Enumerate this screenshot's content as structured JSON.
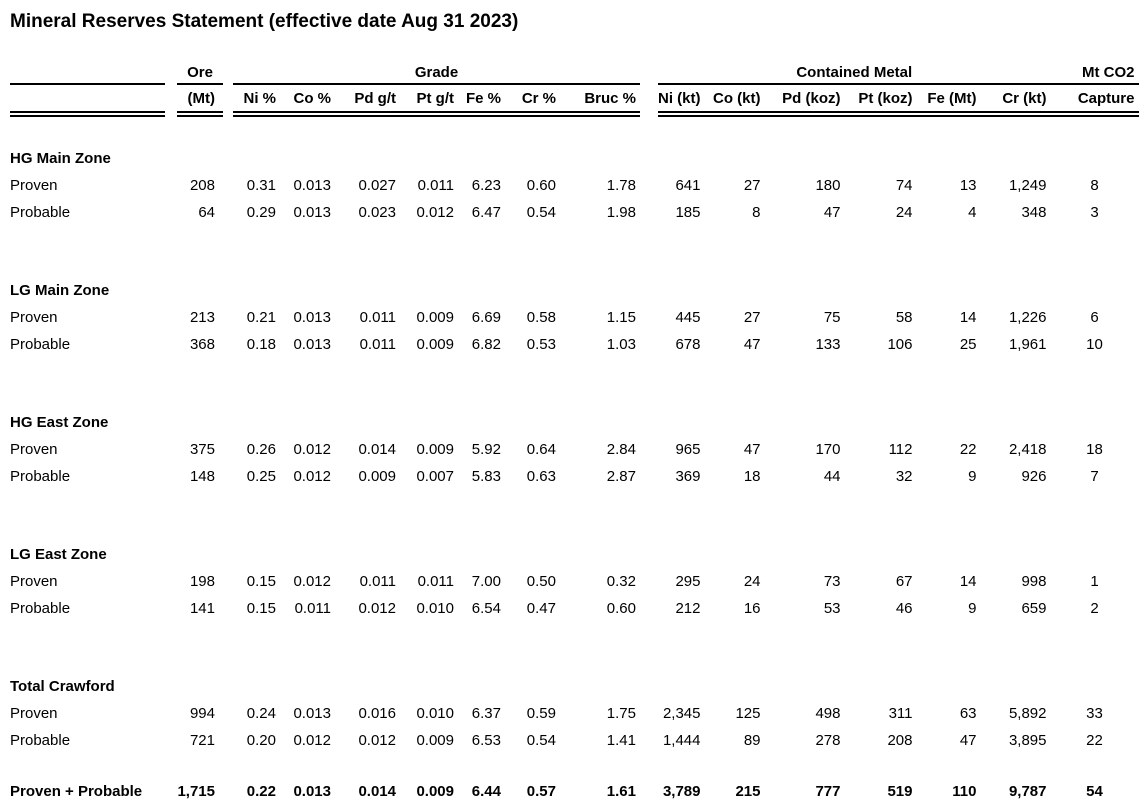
{
  "title": "Mineral Reserves Statement (effective date Aug 31 2023)",
  "table": {
    "group_headers": {
      "ore": "Ore",
      "grade": "Grade",
      "contained_metal": "Contained Metal",
      "mt_co2": "Mt CO2"
    },
    "columns": [
      "(Mt)",
      "Ni %",
      "Co %",
      "Pd g/t",
      "Pt g/t",
      "Fe %",
      "Cr %",
      "Bruc %",
      "Ni (kt)",
      "Co (kt)",
      "Pd (koz)",
      "Pt (koz)",
      "Fe (Mt)",
      "Cr (kt)",
      "Capture"
    ],
    "sections": [
      {
        "zone": "HG Main Zone",
        "rows": [
          {
            "label": "Proven",
            "cells": [
              "208",
              "0.31",
              "0.013",
              "0.027",
              "0.011",
              "6.23",
              "0.60",
              "1.78",
              "641",
              "27",
              "180",
              "74",
              "13",
              "1,249",
              "8"
            ]
          },
          {
            "label": "Probable",
            "cells": [
              "64",
              "0.29",
              "0.013",
              "0.023",
              "0.012",
              "6.47",
              "0.54",
              "1.98",
              "185",
              "8",
              "47",
              "24",
              "4",
              "348",
              "3"
            ]
          }
        ]
      },
      {
        "zone": "LG Main Zone",
        "rows": [
          {
            "label": "Proven",
            "cells": [
              "213",
              "0.21",
              "0.013",
              "0.011",
              "0.009",
              "6.69",
              "0.58",
              "1.15",
              "445",
              "27",
              "75",
              "58",
              "14",
              "1,226",
              "6"
            ]
          },
          {
            "label": "Probable",
            "cells": [
              "368",
              "0.18",
              "0.013",
              "0.011",
              "0.009",
              "6.82",
              "0.53",
              "1.03",
              "678",
              "47",
              "133",
              "106",
              "25",
              "1,961",
              "10"
            ]
          }
        ]
      },
      {
        "zone": "HG East Zone",
        "rows": [
          {
            "label": "Proven",
            "cells": [
              "375",
              "0.26",
              "0.012",
              "0.014",
              "0.009",
              "5.92",
              "0.64",
              "2.84",
              "965",
              "47",
              "170",
              "112",
              "22",
              "2,418",
              "18"
            ]
          },
          {
            "label": "Probable",
            "cells": [
              "148",
              "0.25",
              "0.012",
              "0.009",
              "0.007",
              "5.83",
              "0.63",
              "2.87",
              "369",
              "18",
              "44",
              "32",
              "9",
              "926",
              "7"
            ]
          }
        ]
      },
      {
        "zone": "LG East Zone",
        "rows": [
          {
            "label": "Proven",
            "cells": [
              "198",
              "0.15",
              "0.012",
              "0.011",
              "0.011",
              "7.00",
              "0.50",
              "0.32",
              "295",
              "24",
              "73",
              "67",
              "14",
              "998",
              "1"
            ]
          },
          {
            "label": "Probable",
            "cells": [
              "141",
              "0.15",
              "0.011",
              "0.012",
              "0.010",
              "6.54",
              "0.47",
              "0.60",
              "212",
              "16",
              "53",
              "46",
              "9",
              "659",
              "2"
            ]
          }
        ]
      },
      {
        "zone": "Total Crawford",
        "rows": [
          {
            "label": "Proven",
            "cells": [
              "994",
              "0.24",
              "0.013",
              "0.016",
              "0.010",
              "6.37",
              "0.59",
              "1.75",
              "2,345",
              "125",
              "498",
              "311",
              "63",
              "5,892",
              "33"
            ]
          },
          {
            "label": "Probable",
            "cells": [
              "721",
              "0.20",
              "0.012",
              "0.012",
              "0.009",
              "6.53",
              "0.54",
              "1.41",
              "1,444",
              "89",
              "278",
              "208",
              "47",
              "3,895",
              "22"
            ]
          }
        ]
      }
    ],
    "total_row": {
      "label": "Proven + Probable",
      "cells": [
        "1,715",
        "0.22",
        "0.013",
        "0.014",
        "0.009",
        "6.44",
        "0.57",
        "1.61",
        "3,789",
        "215",
        "777",
        "519",
        "110",
        "9,787",
        "54"
      ]
    }
  }
}
